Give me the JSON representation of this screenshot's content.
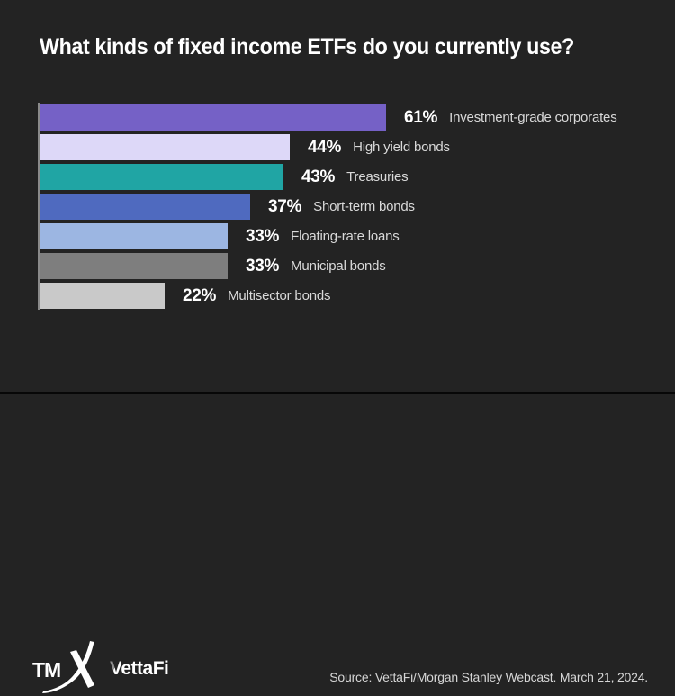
{
  "title": "What kinds of fixed income ETFs do you currently use?",
  "chart_data": {
    "type": "bar",
    "orientation": "horizontal",
    "title": "What kinds of fixed income ETFs do you currently use?",
    "categories": [
      "Investment-grade corporates",
      "High yield bonds",
      "Treasuries",
      "Short-term bonds",
      "Floating-rate loans",
      "Municipal bonds",
      "Multisector bonds"
    ],
    "values": [
      61,
      44,
      43,
      37,
      33,
      33,
      22
    ],
    "value_labels": [
      "61%",
      "44%",
      "43%",
      "37%",
      "33%",
      "33%",
      "22%"
    ],
    "bar_colors": [
      "#7561c6",
      "#ddd8f8",
      "#20a5a4",
      "#4f6abf",
      "#9cb6e2",
      "#7e7e7e",
      "#c9c9c9"
    ],
    "unit": "%",
    "xlim": [
      0,
      100
    ],
    "gridlines": false,
    "legend": false,
    "value_label_position": "right-of-bar"
  },
  "footer": {
    "tmx_text": "TM",
    "vettafi_v": "V",
    "vettafi_rest": "ettaFi",
    "source": "Source: VettaFi/Morgan Stanley Webcast. March 21, 2024."
  },
  "colors": {
    "background": "#232323",
    "axis_line": "#8a8a8a",
    "title_text": "#ffffff",
    "value_text": "#ffffff",
    "category_text": "#d9d9d9",
    "source_text": "#d6d6d6",
    "logo_text": "#ffffff",
    "vettafi_v_accent": "#8f8f8f"
  }
}
